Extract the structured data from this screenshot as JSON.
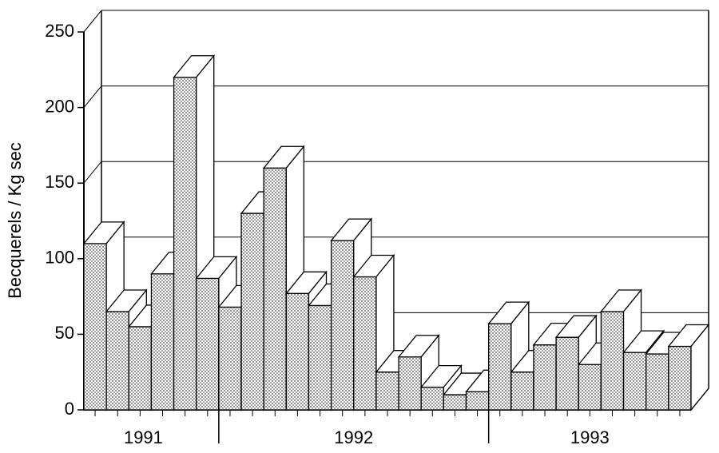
{
  "chart_data": {
    "type": "bar3d",
    "ylabel": "Becquerels / Kg sec",
    "categories": [
      null,
      null,
      null,
      null,
      null,
      null,
      null,
      null,
      null,
      null,
      null,
      null,
      null,
      null,
      null,
      null,
      null,
      null,
      null,
      null,
      null,
      null,
      null,
      null,
      null,
      null,
      null
    ],
    "values": [
      110,
      65,
      55,
      90,
      220,
      87,
      68,
      130,
      160,
      77,
      69,
      112,
      88,
      25,
      35,
      15,
      10,
      12,
      57,
      25,
      43,
      48,
      30,
      65,
      38,
      37,
      42
    ],
    "group_labels": [
      "1991",
      "1992",
      "1993"
    ],
    "ylim": [
      0,
      250
    ],
    "yticks": [
      0,
      50,
      100,
      150,
      200,
      250
    ],
    "grid": true
  }
}
